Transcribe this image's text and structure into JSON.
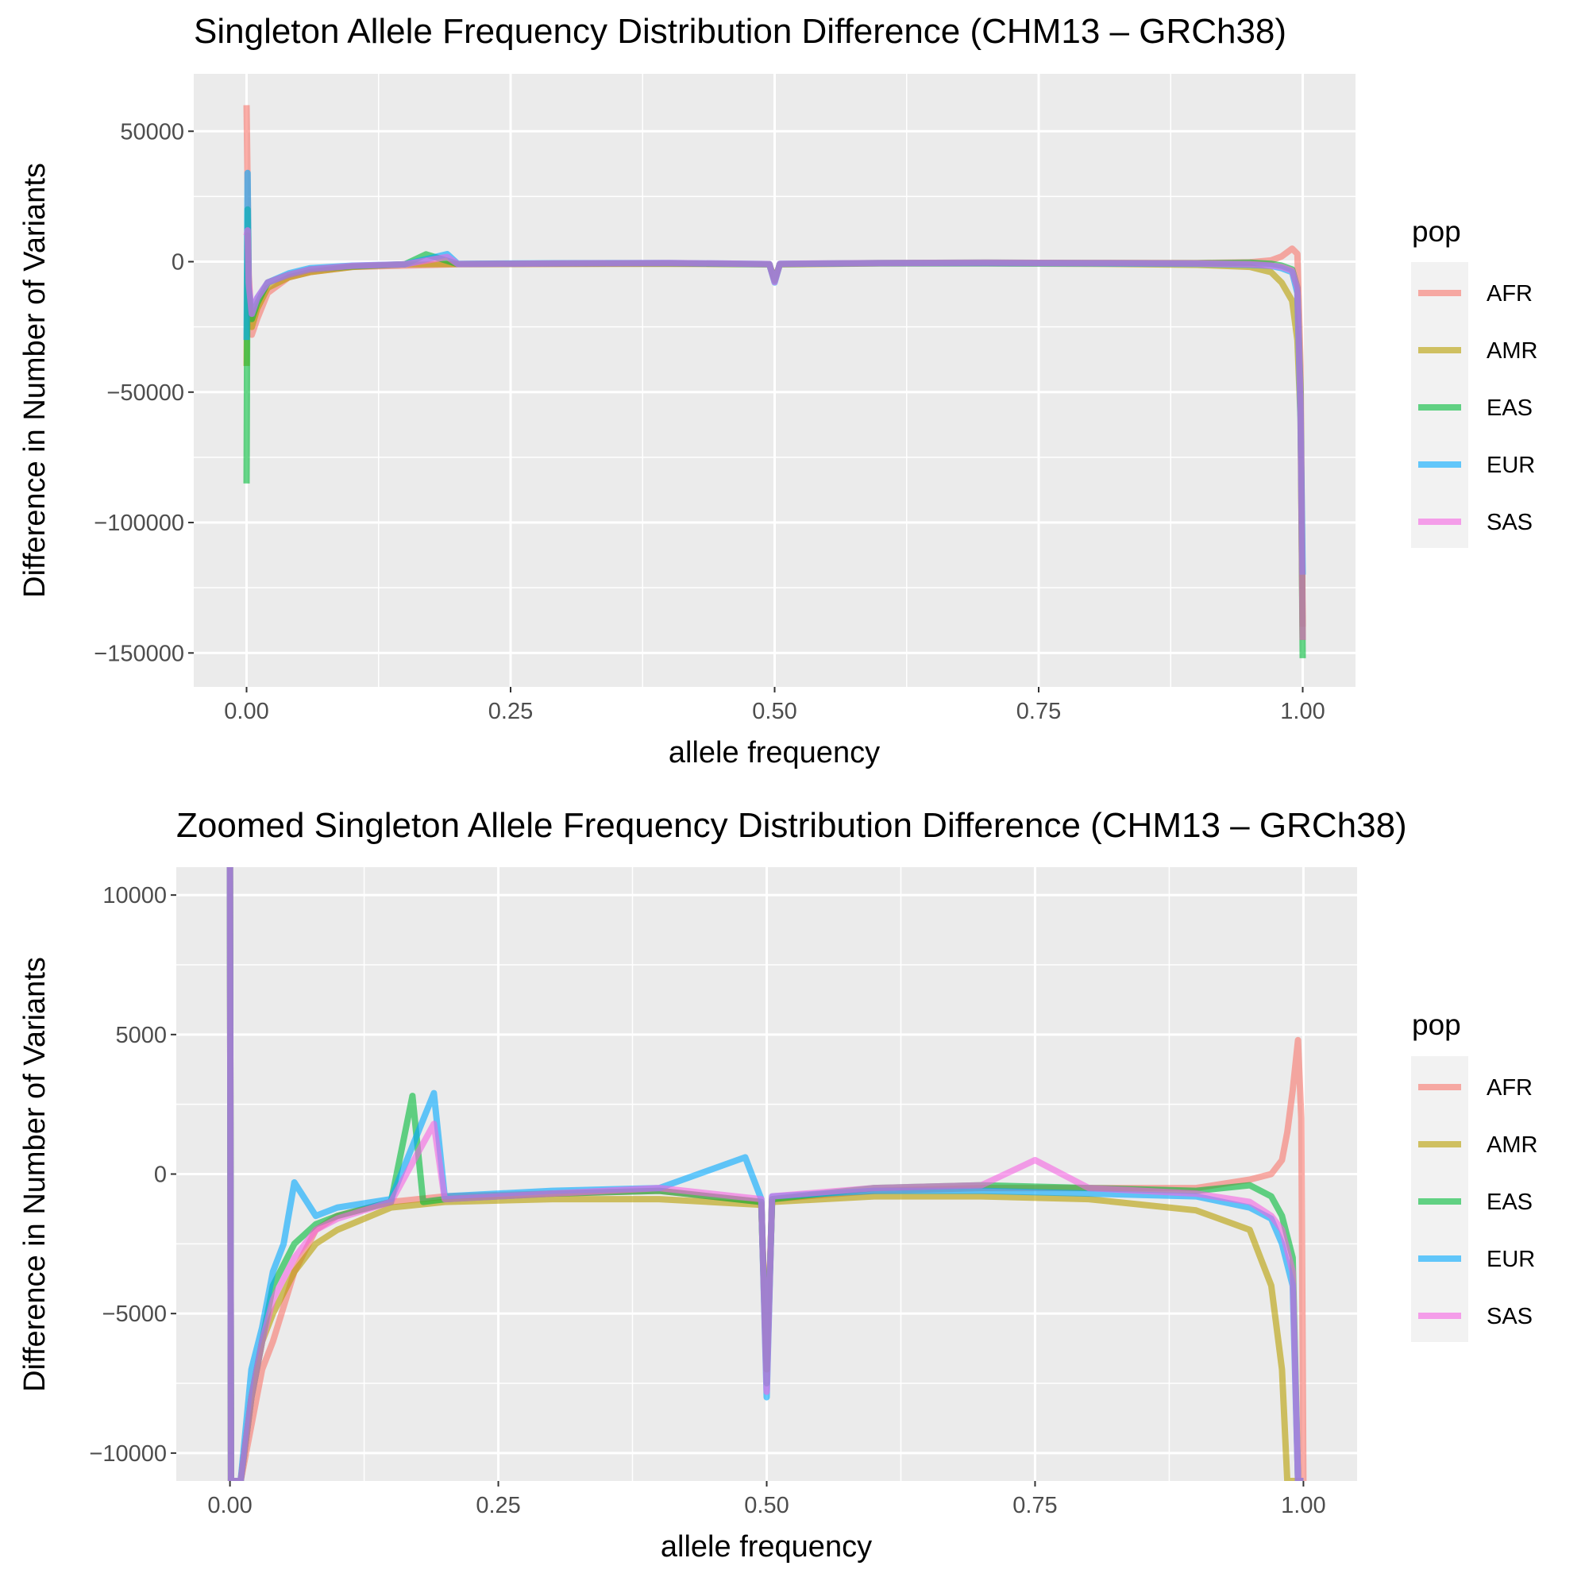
{
  "chart_data": [
    {
      "type": "line",
      "title": "Singleton Allele Frequency Distribution Difference (CHM13 – GRCh38)",
      "xlabel": "allele frequency",
      "ylabel": "Difference in Number of Variants",
      "xlim": [
        -0.05,
        1.05
      ],
      "ylim": [
        -163000,
        72000
      ],
      "xticks": [
        0,
        0.25,
        0.5,
        0.75,
        1
      ],
      "xtick_labels": [
        "0.00",
        "0.25",
        "0.50",
        "0.75",
        "1.00"
      ],
      "yticks": [
        50000,
        0,
        -50000,
        -100000,
        -150000
      ],
      "ytick_labels": [
        "50000",
        "0",
        "−50000",
        "−100000",
        "−150000"
      ],
      "grid": true,
      "legend": {
        "title": "pop",
        "position": "right"
      },
      "series": [
        {
          "name": "AFR",
          "color": "#F8766D",
          "x": [
            0,
            0.001,
            0.002,
            0.005,
            0.01,
            0.02,
            0.04,
            0.06,
            0.1,
            0.15,
            0.2,
            0.3,
            0.4,
            0.495,
            0.5,
            0.505,
            0.6,
            0.7,
            0.8,
            0.9,
            0.95,
            0.97,
            0.98,
            0.99,
            0.995,
            0.998,
            1
          ],
          "y": [
            60000,
            30000,
            -5000,
            -28000,
            -22000,
            -12000,
            -6000,
            -4000,
            -2000,
            -1500,
            -1000,
            -800,
            -700,
            -1000,
            -7000,
            -1000,
            -600,
            -500,
            -500,
            -500,
            -200,
            500,
            2000,
            5000,
            3000,
            -40000,
            -140000
          ]
        },
        {
          "name": "AMR",
          "color": "#B79F00",
          "x": [
            0,
            0.001,
            0.002,
            0.005,
            0.01,
            0.02,
            0.04,
            0.06,
            0.1,
            0.15,
            0.2,
            0.3,
            0.4,
            0.495,
            0.5,
            0.505,
            0.6,
            0.7,
            0.8,
            0.9,
            0.95,
            0.97,
            0.98,
            0.99,
            0.995,
            0.998,
            1
          ],
          "y": [
            -40000,
            10000,
            -15000,
            -25000,
            -18000,
            -10000,
            -6000,
            -4000,
            -2000,
            -1000,
            -900,
            -800,
            -800,
            -1000,
            -7000,
            -1000,
            -700,
            -700,
            -800,
            -1200,
            -2000,
            -4000,
            -8000,
            -15000,
            -30000,
            -60000,
            -145000
          ]
        },
        {
          "name": "EAS",
          "color": "#00BA38",
          "x": [
            0,
            0.001,
            0.002,
            0.005,
            0.01,
            0.02,
            0.04,
            0.06,
            0.1,
            0.15,
            0.17,
            0.2,
            0.3,
            0.4,
            0.495,
            0.5,
            0.505,
            0.6,
            0.7,
            0.8,
            0.9,
            0.95,
            0.97,
            0.98,
            0.99,
            0.995,
            0.998,
            1
          ],
          "y": [
            -85000,
            20000,
            -10000,
            -22000,
            -16000,
            -8000,
            -5000,
            -3000,
            -1800,
            -1000,
            2800,
            -900,
            -700,
            -600,
            -1000,
            -7500,
            -900,
            -500,
            -400,
            -500,
            -600,
            -400,
            -800,
            -1500,
            -3000,
            -10000,
            -50000,
            -152000
          ]
        },
        {
          "name": "EUR",
          "color": "#00A9FF",
          "x": [
            0,
            0.001,
            0.002,
            0.005,
            0.01,
            0.02,
            0.04,
            0.06,
            0.1,
            0.15,
            0.19,
            0.2,
            0.3,
            0.4,
            0.495,
            0.5,
            0.505,
            0.6,
            0.7,
            0.8,
            0.9,
            0.95,
            0.97,
            0.98,
            0.99,
            0.995,
            0.998,
            1
          ],
          "y": [
            -30000,
            34000,
            -10000,
            -20000,
            -14000,
            -8000,
            -4500,
            -2500,
            -1500,
            -1000,
            2900,
            -800,
            -600,
            -500,
            -900,
            -8000,
            -800,
            -600,
            -600,
            -700,
            -800,
            -1200,
            -1600,
            -2500,
            -4000,
            -12000,
            -60000,
            -120000
          ]
        },
        {
          "name": "SAS",
          "color": "#F564E3",
          "x": [
            0,
            0.001,
            0.002,
            0.005,
            0.01,
            0.02,
            0.04,
            0.06,
            0.1,
            0.15,
            0.19,
            0.2,
            0.3,
            0.4,
            0.495,
            0.5,
            0.505,
            0.6,
            0.7,
            0.8,
            0.9,
            0.95,
            0.97,
            0.98,
            0.99,
            0.995,
            0.998,
            1
          ],
          "y": [
            10000,
            12000,
            -8000,
            -20000,
            -14000,
            -8000,
            -5000,
            -3000,
            -1600,
            -1000,
            1800,
            -900,
            -700,
            -500,
            -900,
            -7800,
            -800,
            -500,
            -400,
            -500,
            -700,
            -1000,
            -1500,
            -2000,
            -3500,
            -10000,
            -55000,
            -145000
          ]
        }
      ]
    },
    {
      "type": "line",
      "title": "Zoomed Singleton Allele Frequency Distribution Difference (CHM13 – GRCh38)",
      "xlabel": "allele frequency",
      "ylabel": "Difference in Number of Variants",
      "xlim": [
        -0.05,
        1.05
      ],
      "ylim": [
        -11000,
        11000
      ],
      "xticks": [
        0,
        0.25,
        0.5,
        0.75,
        1
      ],
      "xtick_labels": [
        "0.00",
        "0.25",
        "0.50",
        "0.75",
        "1.00"
      ],
      "yticks": [
        10000,
        5000,
        0,
        -5000,
        -10000
      ],
      "ytick_labels": [
        "10000",
        "5000",
        "0",
        "−5000",
        "−10000"
      ],
      "grid": true,
      "legend": {
        "title": "pop",
        "position": "right"
      },
      "series": [
        {
          "name": "AFR",
          "color": "#F8766D",
          "x": [
            0,
            0.001,
            0.005,
            0.01,
            0.02,
            0.03,
            0.04,
            0.06,
            0.08,
            0.1,
            0.15,
            0.2,
            0.3,
            0.4,
            0.495,
            0.5,
            0.505,
            0.6,
            0.7,
            0.8,
            0.9,
            0.95,
            0.97,
            0.98,
            0.985,
            0.99,
            0.995,
            0.998,
            1
          ],
          "y": [
            11000,
            -11000,
            -11000,
            -11000,
            -9000,
            -7000,
            -6000,
            -3500,
            -2000,
            -1500,
            -1000,
            -800,
            -700,
            -600,
            -1000,
            -7000,
            -900,
            -600,
            -500,
            -500,
            -500,
            -200,
            0,
            500,
            1500,
            3000,
            4800,
            2000,
            -11000
          ]
        },
        {
          "name": "AMR",
          "color": "#B79F00",
          "x": [
            0,
            0.001,
            0.005,
            0.01,
            0.02,
            0.03,
            0.04,
            0.06,
            0.08,
            0.1,
            0.15,
            0.2,
            0.3,
            0.4,
            0.495,
            0.5,
            0.505,
            0.6,
            0.7,
            0.8,
            0.9,
            0.95,
            0.96,
            0.97,
            0.98,
            0.985,
            0.99,
            1
          ],
          "y": [
            11000,
            -11000,
            -11000,
            -11000,
            -8000,
            -6000,
            -5000,
            -3500,
            -2500,
            -2000,
            -1200,
            -1000,
            -900,
            -900,
            -1100,
            -7000,
            -1000,
            -800,
            -800,
            -900,
            -1300,
            -2000,
            -3000,
            -4000,
            -7000,
            -11000,
            -11000,
            -11000
          ]
        },
        {
          "name": "EAS",
          "color": "#00BA38",
          "x": [
            0,
            0.001,
            0.005,
            0.01,
            0.02,
            0.03,
            0.04,
            0.06,
            0.08,
            0.1,
            0.15,
            0.17,
            0.18,
            0.2,
            0.3,
            0.4,
            0.495,
            0.5,
            0.505,
            0.6,
            0.7,
            0.8,
            0.9,
            0.95,
            0.97,
            0.98,
            0.99,
            0.995,
            1
          ],
          "y": [
            11000,
            -11000,
            -11000,
            -11000,
            -8000,
            -6000,
            -4000,
            -2500,
            -1800,
            -1500,
            -1000,
            2800,
            -1000,
            -900,
            -700,
            -600,
            -1000,
            -7500,
            -900,
            -500,
            -400,
            -500,
            -600,
            -400,
            -800,
            -1500,
            -3000,
            -11000,
            -11000
          ]
        },
        {
          "name": "EUR",
          "color": "#00A9FF",
          "x": [
            0,
            0.001,
            0.005,
            0.01,
            0.02,
            0.03,
            0.04,
            0.05,
            0.06,
            0.08,
            0.1,
            0.15,
            0.19,
            0.2,
            0.3,
            0.4,
            0.48,
            0.495,
            0.5,
            0.505,
            0.6,
            0.7,
            0.8,
            0.9,
            0.95,
            0.97,
            0.98,
            0.99,
            0.995,
            1
          ],
          "y": [
            11000,
            -11000,
            -11000,
            -11000,
            -7000,
            -5500,
            -3500,
            -2500,
            -300,
            -1500,
            -1200,
            -900,
            2900,
            -800,
            -600,
            -500,
            600,
            -900,
            -8000,
            -800,
            -600,
            -600,
            -700,
            -800,
            -1200,
            -1600,
            -2500,
            -4000,
            -11000,
            -11000
          ]
        },
        {
          "name": "SAS",
          "color": "#F564E3",
          "x": [
            0,
            0.001,
            0.005,
            0.01,
            0.02,
            0.03,
            0.04,
            0.06,
            0.08,
            0.1,
            0.15,
            0.19,
            0.2,
            0.3,
            0.4,
            0.495,
            0.5,
            0.505,
            0.6,
            0.7,
            0.75,
            0.8,
            0.9,
            0.95,
            0.97,
            0.98,
            0.99,
            0.995,
            1
          ],
          "y": [
            11000,
            -11000,
            -11000,
            -11000,
            -8000,
            -6000,
            -4500,
            -3000,
            -2000,
            -1600,
            -1000,
            1800,
            -900,
            -700,
            -500,
            -900,
            -7800,
            -800,
            -500,
            -400,
            500,
            -500,
            -700,
            -1000,
            -1500,
            -2000,
            -3500,
            -11000,
            -11000
          ]
        }
      ]
    }
  ]
}
